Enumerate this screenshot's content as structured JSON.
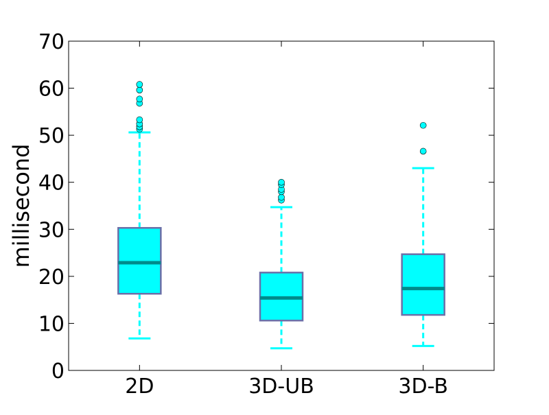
{
  "chart_data": {
    "type": "box",
    "ylabel": "millisecond",
    "ylim": [
      0,
      70
    ],
    "yticks": [
      0,
      10,
      20,
      30,
      40,
      50,
      60,
      70
    ],
    "categories": [
      "2D",
      "3D-UB",
      "3D-B"
    ],
    "grid": false,
    "series": [
      {
        "whisker_low": 6.8,
        "q1": 16.3,
        "median": 22.9,
        "q3": 30.3,
        "whisker_high": 50.6,
        "outliers": [
          51.3,
          51.8,
          52.4,
          53.3,
          56.8,
          57.7,
          59.6,
          60.8
        ]
      },
      {
        "whisker_low": 4.7,
        "q1": 10.6,
        "median": 15.4,
        "q3": 20.8,
        "whisker_high": 34.7,
        "outliers": [
          36.2,
          36.8,
          38.0,
          38.5,
          39.5,
          40.0
        ]
      },
      {
        "whisker_low": 5.2,
        "q1": 11.8,
        "median": 17.4,
        "q3": 24.7,
        "whisker_high": 43.0,
        "outliers": [
          46.6,
          52.1
        ]
      }
    ],
    "colors": {
      "box_fill": "#00ffff",
      "box_edge": "#6b6fa8",
      "median": "#008b8b",
      "whisker": "#00ffff",
      "cap": "#00ffff",
      "outlier_fill": "#00ffff",
      "outlier_edge": "#000000",
      "axes": "#000000"
    }
  }
}
